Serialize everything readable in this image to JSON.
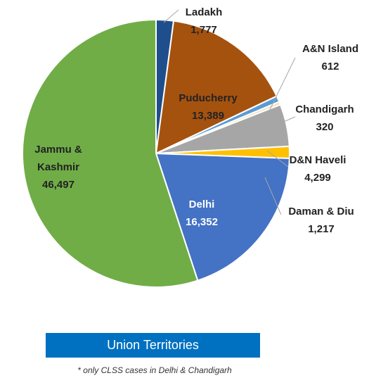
{
  "chart_data": {
    "type": "pie",
    "categories": [
      "Ladakh",
      "Puducherry",
      "A&N Island",
      "Chandigarh",
      "D&N Haveli",
      "Daman & Diu",
      "Delhi",
      "Jammu & Kashmir"
    ],
    "values": [
      1777,
      13389,
      612,
      320,
      4299,
      1217,
      16352,
      46497
    ],
    "value_labels": [
      "1,777",
      "13,389",
      "612",
      "320",
      "4,299",
      "1,217",
      "16,352",
      "46,497"
    ],
    "colors": [
      "#1f4e8c",
      "#a5520f",
      "#5b9bd5",
      "#f3e3bf",
      "#a6a6a6",
      "#ffc000",
      "#4472c4",
      "#70ad47"
    ],
    "caption": "Union Territories",
    "footnote": "* only CLSS cases in Delhi & Chandigarh"
  }
}
